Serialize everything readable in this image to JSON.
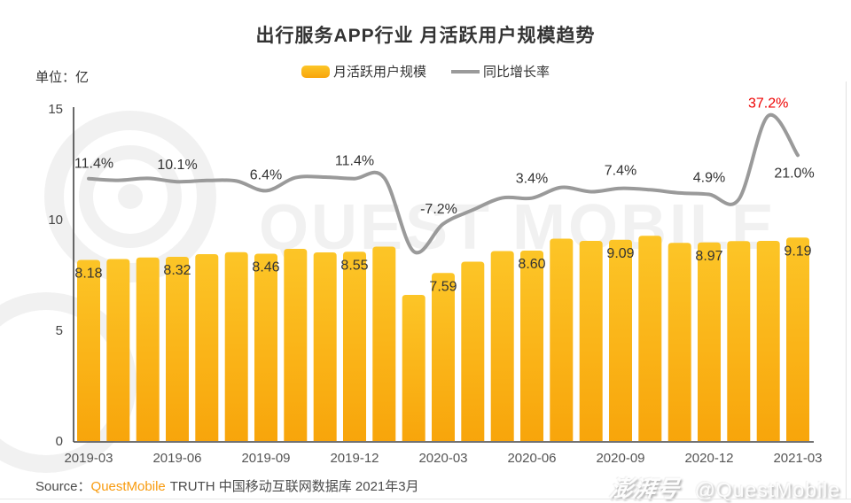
{
  "title": "出行服务APP行业 月活跃用户规模趋势",
  "unit_label": "单位：亿",
  "legend": {
    "bar_label": "月活跃用户规模",
    "line_label": "同比增长率"
  },
  "source": {
    "label": "Source：",
    "brand": "QuestMobile",
    "suffix": "TRUTH 中国移动互联网数据库 2021年3月"
  },
  "footer": {
    "brand_logo": "澎湃号",
    "handle": "@QuestMobile"
  },
  "watermark": {
    "text": "QUEST MOBILE"
  },
  "colors": {
    "bar_top": "#FCC527",
    "bar_bottom": "#F8A50B",
    "bar_legend": "#FBB616",
    "line": "#9A9A9A",
    "highlight_label": "#EE0000",
    "label_text": "#333333",
    "axis": "#444444",
    "tick_text": "#555555",
    "watermark": "#F1F1F1",
    "brand_orange": "#F89B0E"
  },
  "chart_data": {
    "type": "combo",
    "x": [
      "2019-03",
      "2019-04",
      "2019-05",
      "2019-06",
      "2019-07",
      "2019-08",
      "2019-09",
      "2019-10",
      "2019-11",
      "2019-12",
      "2020-01",
      "2020-02",
      "2020-03",
      "2020-04",
      "2020-05",
      "2020-06",
      "2020-07",
      "2020-08",
      "2020-09",
      "2020-10",
      "2020-11",
      "2020-12",
      "2021-01",
      "2021-02",
      "2021-03"
    ],
    "x_tick_labels": [
      "2019-03",
      "2019-06",
      "2019-09",
      "2019-12",
      "2020-03",
      "2020-06",
      "2020-09",
      "2020-12",
      "2021-03"
    ],
    "y_ticks": [
      0,
      5,
      10,
      15
    ],
    "ylim": [
      0,
      15
    ],
    "ylabel": "单位：亿",
    "series": [
      {
        "name": "月活跃用户规模",
        "type": "bar",
        "unit": "亿",
        "values": [
          8.18,
          8.22,
          8.29,
          8.32,
          8.44,
          8.53,
          8.46,
          8.68,
          8.52,
          8.55,
          8.78,
          6.6,
          7.59,
          8.1,
          8.58,
          8.6,
          9.14,
          9.04,
          9.09,
          9.27,
          8.95,
          8.97,
          9.03,
          9.04,
          9.19
        ]
      },
      {
        "name": "同比增长率",
        "type": "line",
        "unit": "%",
        "values": [
          11.4,
          10.7,
          11.5,
          10.1,
          10.6,
          10.4,
          6.4,
          11.8,
          12.0,
          11.4,
          11.8,
          -18.5,
          -7.2,
          -1.5,
          3.5,
          3.4,
          7.8,
          6.0,
          7.4,
          6.8,
          5.5,
          4.9,
          2.8,
          37.2,
          21.0
        ]
      }
    ],
    "bar_labels": [
      {
        "x": "2019-03",
        "text": "8.18"
      },
      {
        "x": "2019-06",
        "text": "8.32"
      },
      {
        "x": "2019-09",
        "text": "8.46"
      },
      {
        "x": "2019-12",
        "text": "8.55"
      },
      {
        "x": "2020-03",
        "text": "7.59"
      },
      {
        "x": "2020-06",
        "text": "8.60"
      },
      {
        "x": "2020-09",
        "text": "9.09"
      },
      {
        "x": "2020-12",
        "text": "8.97"
      },
      {
        "x": "2021-03",
        "text": "9.19"
      }
    ],
    "line_labels": [
      {
        "x": "2019-03",
        "text": "11.4%"
      },
      {
        "x": "2019-06",
        "text": "10.1%"
      },
      {
        "x": "2019-09",
        "text": "6.4%"
      },
      {
        "x": "2019-12",
        "text": "11.4%"
      },
      {
        "x": "2020-03",
        "text": "-7.2%"
      },
      {
        "x": "2020-06",
        "text": "3.4%"
      },
      {
        "x": "2020-09",
        "text": "7.4%"
      },
      {
        "x": "2020-12",
        "text": "4.9%"
      },
      {
        "x": "2021-02",
        "text": "37.2%",
        "highlight": true
      },
      {
        "x": "2021-03",
        "text": "21.0%"
      }
    ]
  }
}
